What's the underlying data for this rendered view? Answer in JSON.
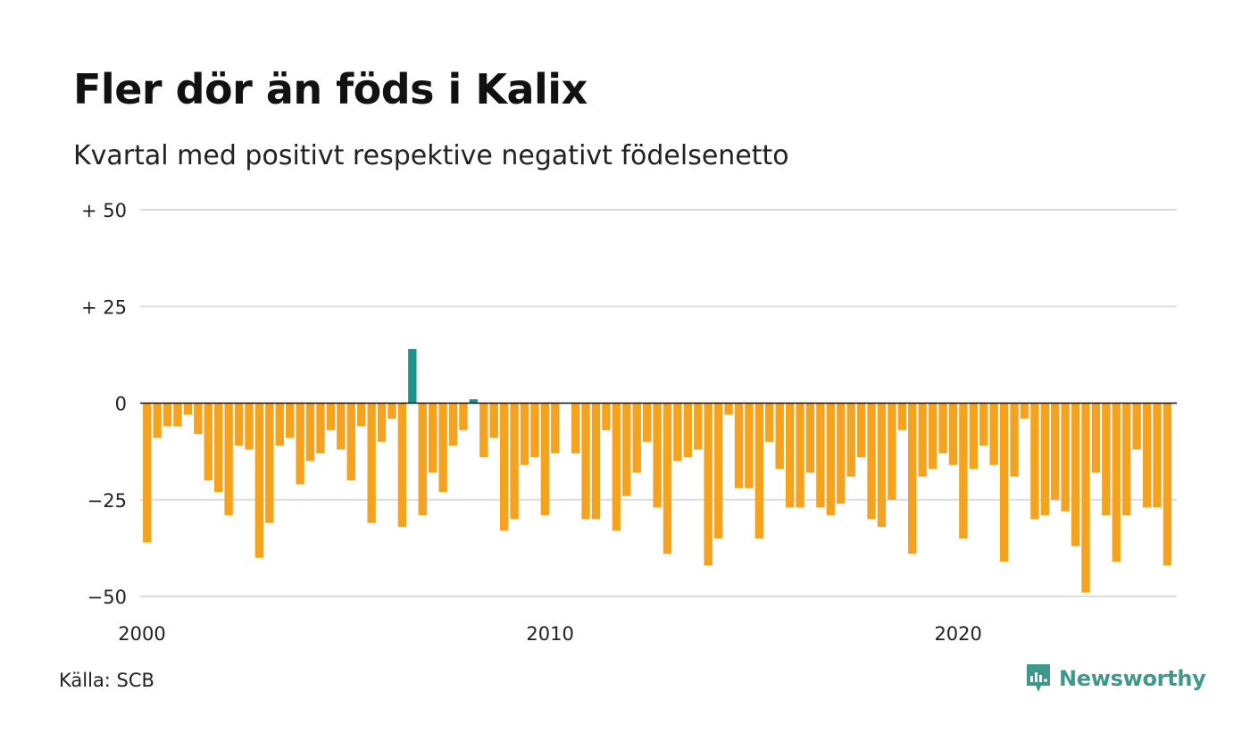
{
  "title": "Fler dör än föds i Kalix",
  "subtitle": "Kvartal med positivt respektive negativt födelsenetto",
  "source": "Källa: SCB",
  "brand": {
    "name": "Newsworthy",
    "icon": "newsworthy-logo-icon"
  },
  "colors": {
    "positive": "#1a9487",
    "negative": "#f5a21e",
    "grid": "#dddddd",
    "zero": "#111111"
  },
  "chart_data": {
    "type": "bar",
    "title": "Fler dör än föds i Kalix",
    "subtitle": "Kvartal med positivt respektive negativt födelsenetto",
    "xlabel": "",
    "ylabel": "",
    "x_start": 2000,
    "periods_per_year": 4,
    "x_ticks": [
      "2000",
      "2010",
      "2020"
    ],
    "y_ticks": [
      {
        "value": 50,
        "label": "+ 50"
      },
      {
        "value": 25,
        "label": "+ 25"
      },
      {
        "value": 0,
        "label": "0"
      },
      {
        "value": -25,
        "label": "−25"
      },
      {
        "value": -50,
        "label": "−50"
      }
    ],
    "ylim": [
      -50,
      50
    ],
    "grid": true,
    "legend": "none",
    "values": [
      -36,
      -9,
      -6,
      -6,
      -3,
      -8,
      -20,
      -23,
      -29,
      -11,
      -12,
      -40,
      -31,
      -11,
      -9,
      -21,
      -15,
      -13,
      -7,
      -12,
      -20,
      -6,
      -31,
      -10,
      -4,
      -32,
      14,
      -29,
      -18,
      -23,
      -11,
      -7,
      1,
      -14,
      -9,
      -33,
      -30,
      -16,
      -14,
      -29,
      -13,
      null,
      -13,
      -30,
      -30,
      -7,
      -33,
      -24,
      -18,
      -10,
      -27,
      -39,
      -15,
      -14,
      -12,
      -42,
      -35,
      -3,
      -22,
      -22,
      -35,
      -10,
      -17,
      -27,
      -27,
      -18,
      -27,
      -29,
      -26,
      -19,
      -14,
      -30,
      -32,
      -25,
      -7,
      -39,
      -19,
      -17,
      -13,
      -16,
      -35,
      -17,
      -11,
      -16,
      -41,
      -19,
      -4,
      -30,
      -29,
      -25,
      -28,
      -37,
      -49,
      -18,
      -29,
      -41,
      -29,
      -12,
      -27,
      -27,
      -42
    ]
  }
}
